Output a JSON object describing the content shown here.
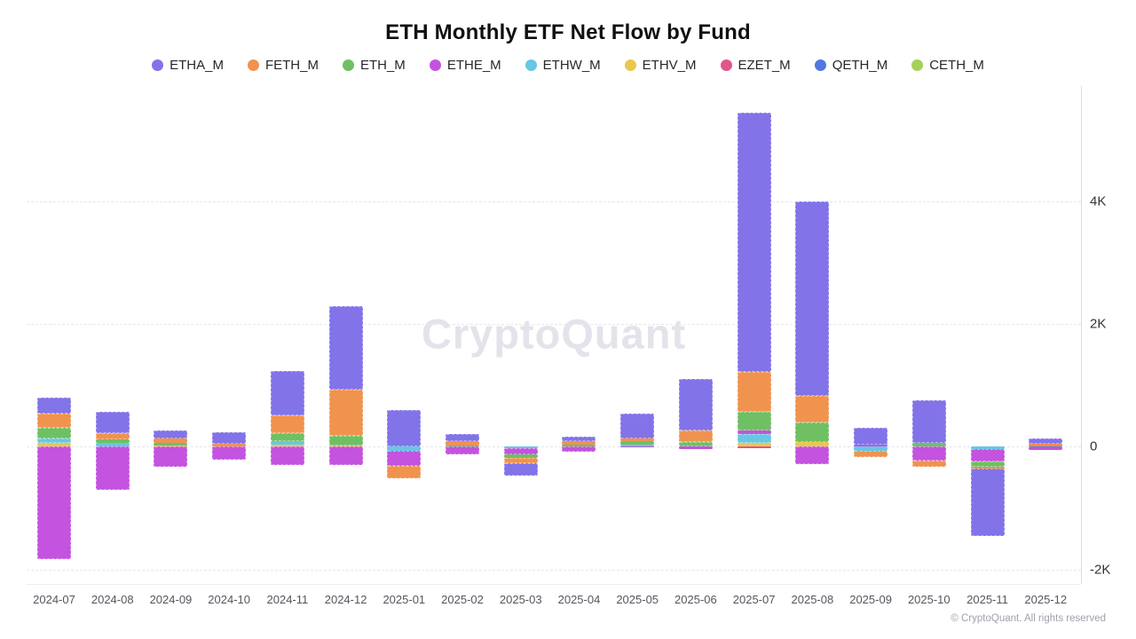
{
  "title": "ETH Monthly ETF Net Flow by Fund",
  "watermark": "CryptoQuant",
  "copyright": "© CryptoQuant. All rights reserved",
  "chart_data": {
    "type": "bar",
    "stacked": true,
    "title": "ETH Monthly ETF Net Flow by Fund",
    "xlabel": "",
    "ylabel": "",
    "ylim": [
      -2400,
      5900
    ],
    "grid": true,
    "legend_position": "top",
    "stack_rule": "reversed-stacks: later series sit closer to zero on both sides",
    "categories": [
      "2024-07",
      "2024-08",
      "2024-09",
      "2024-10",
      "2024-11",
      "2024-12",
      "2025-01",
      "2025-02",
      "2025-03",
      "2025-04",
      "2025-05",
      "2025-06",
      "2025-07",
      "2025-08",
      "2025-09",
      "2025-10",
      "2025-11",
      "2025-12"
    ],
    "y_ticks": [
      {
        "label": "4K",
        "value": 4000
      },
      {
        "label": "2K",
        "value": 2000
      },
      {
        "label": "0",
        "value": 0
      },
      {
        "label": "-2K",
        "value": -2000
      }
    ],
    "series": [
      {
        "name": "ETHA_M",
        "color": "#8273e9",
        "values": [
          260,
          360,
          140,
          180,
          725,
          1350,
          600,
          115,
          -195,
          80,
          405,
          840,
          4230,
          3170,
          265,
          695,
          -1100,
          95
        ]
      },
      {
        "name": "FETH_M",
        "color": "#f0934e",
        "values": [
          230,
          100,
          70,
          50,
          300,
          760,
          -200,
          70,
          -85,
          45,
          50,
          185,
          640,
          425,
          -105,
          -100,
          -30,
          25
        ]
      },
      {
        "name": "ETH_M",
        "color": "#6fc062",
        "values": [
          170,
          60,
          45,
          0,
          120,
          160,
          0,
          20,
          -60,
          40,
          55,
          80,
          315,
          330,
          0,
          60,
          -90,
          20
        ]
      },
      {
        "name": "ETHE_M",
        "color": "#c453df",
        "values": [
          -1830,
          -710,
          -330,
          -215,
          -305,
          -300,
          -250,
          -125,
          -105,
          -80,
          -15,
          -35,
          60,
          -280,
          40,
          -225,
          -200,
          -60
        ]
      },
      {
        "name": "ETHW_M",
        "color": "#67c7e5",
        "values": [
          85,
          55,
          0,
          0,
          60,
          0,
          -70,
          0,
          -25,
          0,
          30,
          0,
          135,
          0,
          -70,
          0,
          -40,
          0
        ]
      },
      {
        "name": "ETHV_M",
        "color": "#e9c84e",
        "values": [
          55,
          0,
          15,
          0,
          35,
          15,
          0,
          0,
          0,
          0,
          0,
          0,
          65,
          70,
          0,
          0,
          0,
          0
        ]
      },
      {
        "name": "EZET_M",
        "color": "#e0558c",
        "values": [
          0,
          0,
          0,
          0,
          0,
          0,
          0,
          0,
          0,
          0,
          0,
          0,
          -30,
          0,
          0,
          0,
          0,
          0
        ]
      },
      {
        "name": "QETH_M",
        "color": "#5277e0",
        "values": [
          0,
          0,
          0,
          0,
          0,
          0,
          0,
          0,
          0,
          0,
          0,
          0,
          0,
          0,
          0,
          0,
          0,
          0
        ]
      },
      {
        "name": "CETH_M",
        "color": "#a5d158",
        "values": [
          0,
          0,
          0,
          0,
          0,
          0,
          0,
          0,
          0,
          0,
          0,
          0,
          0,
          0,
          0,
          0,
          0,
          0
        ]
      }
    ]
  }
}
